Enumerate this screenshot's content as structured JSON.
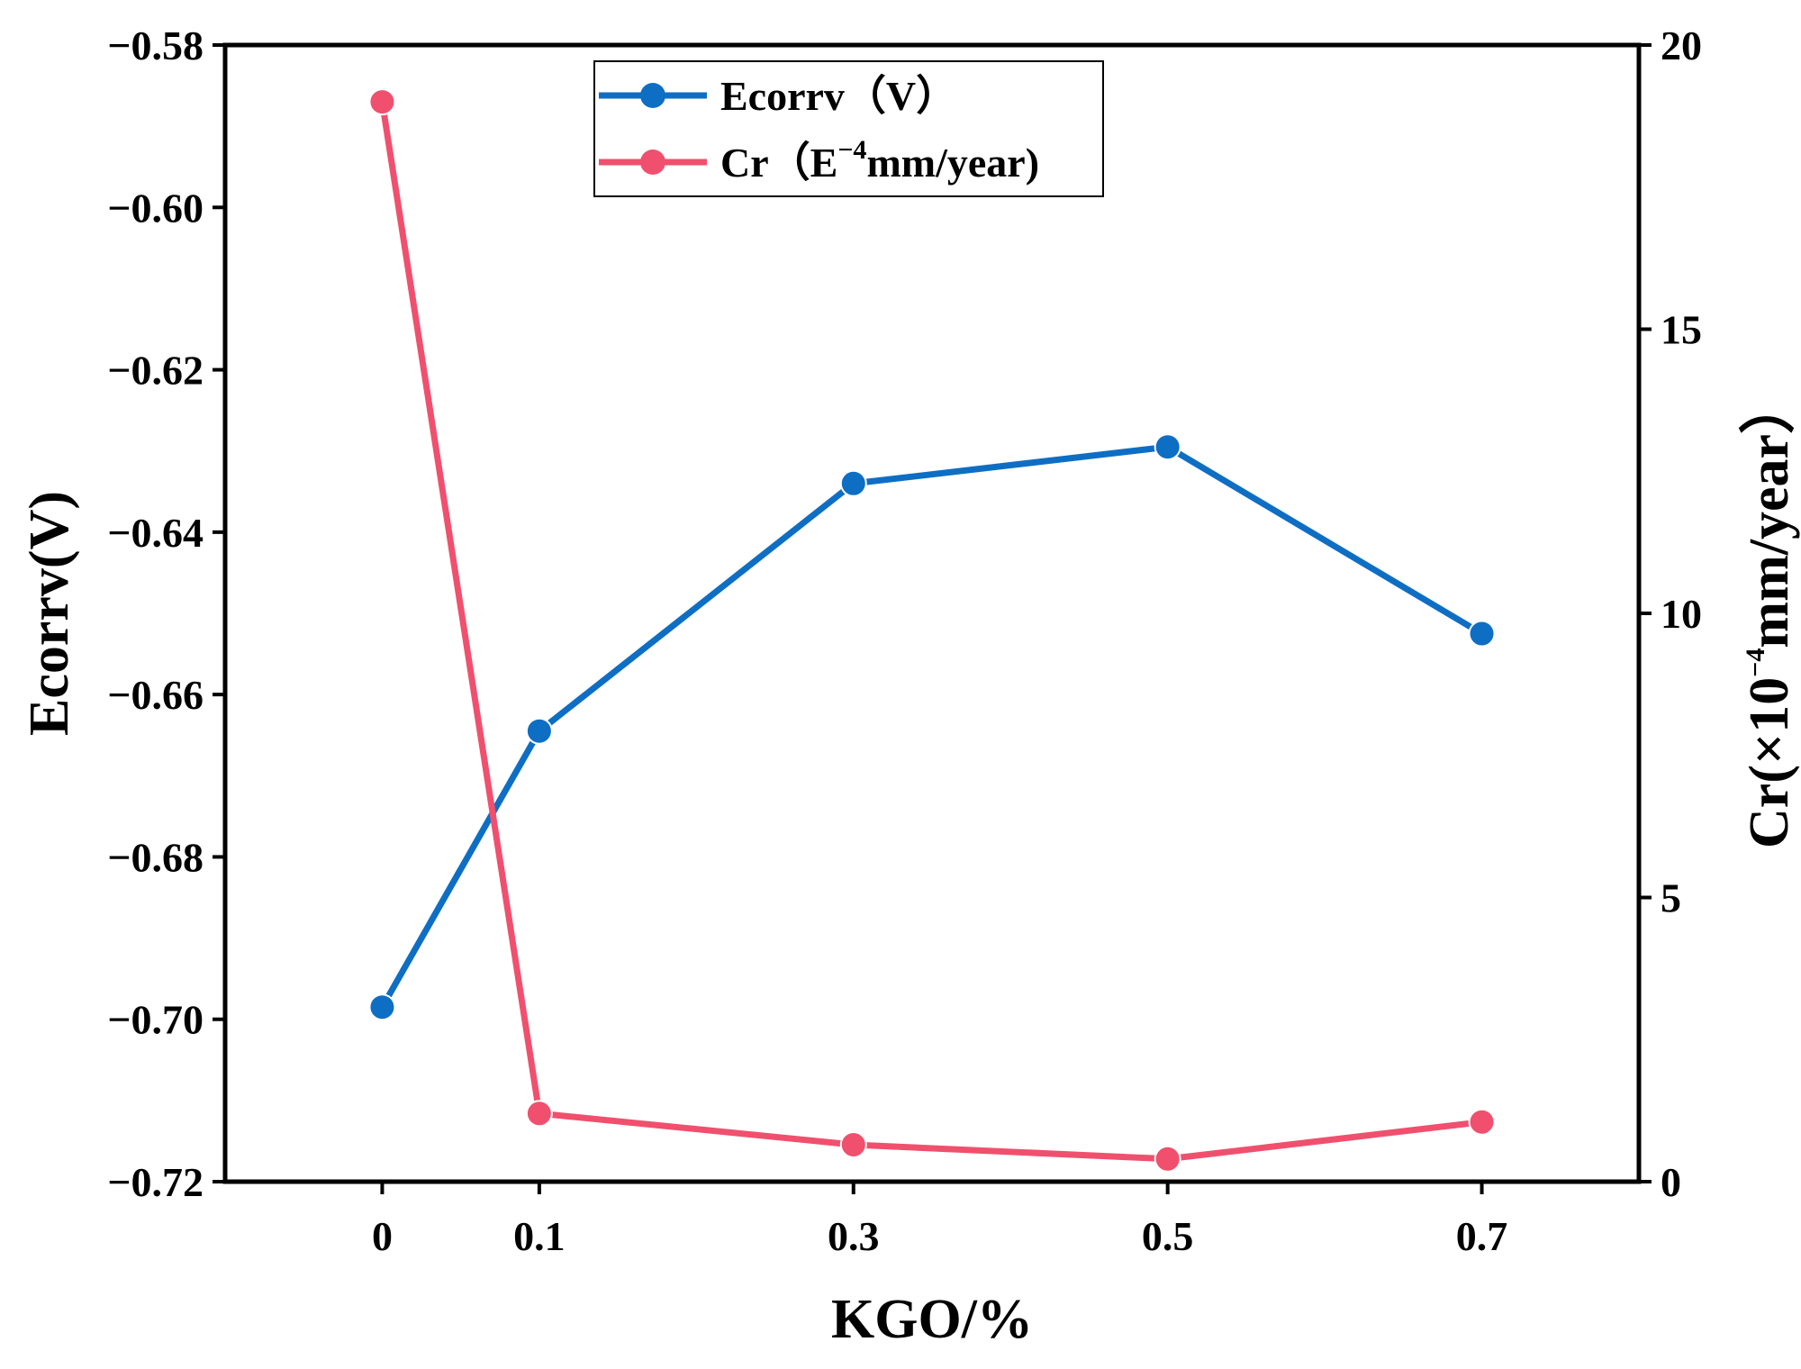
{
  "chart_data": {
    "type": "line",
    "x": [
      0,
      0.1,
      0.3,
      0.5,
      0.7
    ],
    "x_tick_labels": [
      "0",
      "0.1",
      "0.3",
      "0.5",
      "0.7"
    ],
    "xlim": [
      -0.1,
      0.8
    ],
    "xlabel": "KGO/%",
    "ylabel_left": "Ecorrv(V)",
    "ylim_left": [
      -0.72,
      -0.58
    ],
    "y_left_tick_labels": [
      "−0.58",
      "−0.60",
      "−0.62",
      "−0.64",
      "−0.66",
      "−0.68",
      "−0.70",
      "−0.72"
    ],
    "y_left_tick_values": [
      -0.58,
      -0.6,
      -0.62,
      -0.64,
      -0.66,
      -0.68,
      -0.7,
      -0.72
    ],
    "ylabel_right": {
      "pre": "Cr(×10",
      "sup": "−4",
      "post": "mm/year）"
    },
    "ylim_right": [
      0,
      20
    ],
    "y_right_tick_labels": [
      "20",
      "15",
      "10",
      "5",
      "0"
    ],
    "y_right_tick_values": [
      20,
      15,
      10,
      5,
      0
    ],
    "legend_position": "top-center",
    "series": [
      {
        "name": "Ecorrv（V）",
        "axis": "left",
        "color": "#0e6ec4",
        "values": [
          -0.6985,
          -0.6645,
          -0.634,
          -0.6295,
          -0.6525
        ]
      },
      {
        "name": "Cr（E−4mm/year)",
        "legend_parts": {
          "pre": "Cr（E",
          "sup": "−4",
          "post": "mm/year)"
        },
        "axis": "right",
        "color": "#f0506e",
        "values": [
          19.0,
          1.2,
          0.65,
          0.4,
          1.05
        ]
      }
    ]
  }
}
